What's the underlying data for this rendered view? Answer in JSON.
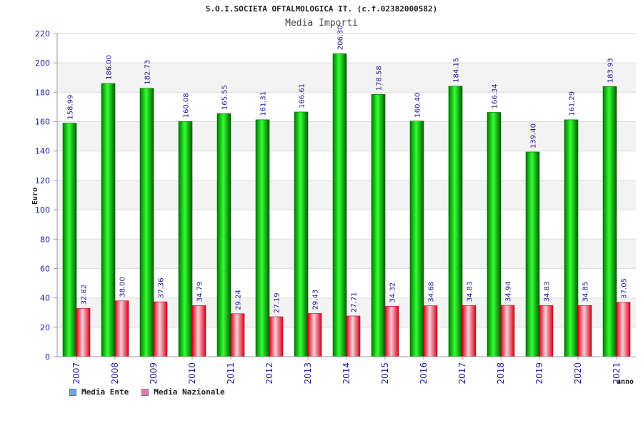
{
  "header": {
    "title": "S.O.I.SOCIETA OFTALMOLOGICA IT. (c.f.02382000582)",
    "subtitle": "Media Importi"
  },
  "chart_data": {
    "type": "bar",
    "title": "Media Importi",
    "xlabel": "anno",
    "ylabel": "Euro",
    "ylim": [
      0,
      220
    ],
    "yticks": [
      0,
      20,
      40,
      60,
      80,
      100,
      120,
      140,
      160,
      180,
      200,
      220
    ],
    "categories": [
      "2007",
      "2008",
      "2009",
      "2010",
      "2011",
      "2012",
      "2013",
      "2014",
      "2015",
      "2016",
      "2017",
      "2018",
      "2019",
      "2020",
      "2021"
    ],
    "series": [
      {
        "name": "Media Ente",
        "color": "#00a000",
        "values": [
          158.99,
          186.0,
          182.73,
          160.08,
          165.55,
          161.31,
          166.61,
          206.3,
          178.58,
          160.4,
          184.15,
          166.34,
          139.4,
          161.29,
          183.93
        ],
        "labels": [
          "158.99",
          "186.00",
          "182.73",
          "160.08",
          "165.55",
          "161.31",
          "166.61",
          "206.30",
          "178.58",
          "160.40",
          "184.15",
          "166.34",
          "139.40",
          "161.29",
          "183.93"
        ]
      },
      {
        "name": "Media Nazionale",
        "color": "#e0203a",
        "values": [
          32.82,
          38.0,
          37.36,
          34.79,
          29.24,
          27.19,
          29.43,
          27.71,
          34.32,
          34.68,
          34.83,
          34.94,
          34.83,
          34.85,
          37.05
        ],
        "labels": [
          "32.82",
          "38.00",
          "37.36",
          "34.79",
          "29.24",
          "27.19",
          "29.43",
          "27.71",
          "34.32",
          "34.68",
          "34.83",
          "34.94",
          "34.83",
          "34.85",
          "37.05"
        ]
      }
    ],
    "legend": [
      {
        "label": "Media Ente",
        "color": "#6aa6e8"
      },
      {
        "label": "Media Nazionale",
        "color": "#e079b6"
      }
    ],
    "grid": true,
    "legend_position": "bottom-left"
  }
}
